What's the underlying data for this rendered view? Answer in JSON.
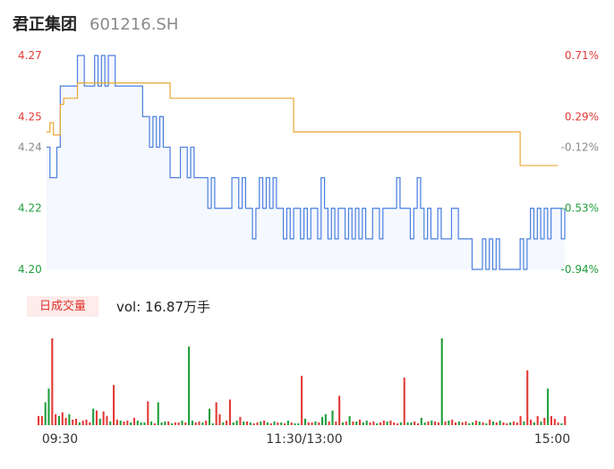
{
  "header": {
    "name": "君正集团",
    "code": "601216.SH"
  },
  "colors": {
    "price": "#4a7fe0",
    "avg": "#e8a735",
    "up": "#e23a36",
    "down": "#1f9e3c",
    "flat": "#8a8a8a",
    "fill": "#f5f8fe"
  },
  "chart_data": [
    {
      "type": "line",
      "series": [
        {
          "values": [
            4.24,
            4.23,
            4.23,
            4.24,
            4.26,
            4.26,
            4.26,
            4.26,
            4.26,
            4.27,
            4.27,
            4.26,
            4.26,
            4.26,
            4.27,
            4.26,
            4.27,
            4.26,
            4.27,
            4.27,
            4.26,
            4.26,
            4.26,
            4.26,
            4.26,
            4.26,
            4.26,
            4.26,
            4.25,
            4.25,
            4.24,
            4.25,
            4.24,
            4.25,
            4.24,
            4.24,
            4.23,
            4.23,
            4.23,
            4.24,
            4.24,
            4.23,
            4.24,
            4.23,
            4.23,
            4.23,
            4.23,
            4.22,
            4.23,
            4.22,
            4.22,
            4.22,
            4.22,
            4.22,
            4.23,
            4.23,
            4.22,
            4.23,
            4.22,
            4.22,
            4.21,
            4.22,
            4.23,
            4.22,
            4.23,
            4.22,
            4.23,
            4.22,
            4.22,
            4.21,
            4.22,
            4.21,
            4.22,
            4.22,
            4.21,
            4.22,
            4.21,
            4.22,
            4.22,
            4.21,
            4.23,
            4.22,
            4.21,
            4.22,
            4.21,
            4.22,
            4.22,
            4.21,
            4.22,
            4.21,
            4.22,
            4.21,
            4.22,
            4.21,
            4.21,
            4.22,
            4.22,
            4.21,
            4.22,
            4.22,
            4.22,
            4.22,
            4.23,
            4.22,
            4.22,
            4.22,
            4.21,
            4.22,
            4.23,
            4.22,
            4.21,
            4.22,
            4.21,
            4.21,
            4.22,
            4.21,
            4.21,
            4.21,
            4.22,
            4.22,
            4.21,
            4.21,
            4.21,
            4.21,
            4.2,
            4.2,
            4.2,
            4.21,
            4.2,
            4.21,
            4.2,
            4.21,
            4.2,
            4.2,
            4.2,
            4.2,
            4.2,
            4.2,
            4.21,
            4.2,
            4.21,
            4.22,
            4.21,
            4.22,
            4.21,
            4.22,
            4.21,
            4.22,
            4.22,
            4.22,
            4.21,
            4.22
          ]
        },
        {
          "values": [
            4.245,
            4.248,
            4.244,
            4.244,
            4.254,
            4.256,
            4.256,
            4.256,
            4.256,
            4.261,
            4.261,
            4.261,
            4.261,
            4.261,
            4.261,
            4.261,
            4.261,
            4.261,
            4.261,
            4.261,
            4.261,
            4.261,
            4.261,
            4.261,
            4.261,
            4.261,
            4.261,
            4.261,
            4.261,
            4.261,
            4.261,
            4.261,
            4.261,
            4.261,
            4.261,
            4.261,
            4.256,
            4.256,
            4.256,
            4.256,
            4.256,
            4.256,
            4.256,
            4.256,
            4.256,
            4.256,
            4.256,
            4.256,
            4.256,
            4.256,
            4.256,
            4.256,
            4.256,
            4.256,
            4.256,
            4.256,
            4.256,
            4.256,
            4.256,
            4.256,
            4.256,
            4.256,
            4.256,
            4.256,
            4.256,
            4.256,
            4.256,
            4.256,
            4.256,
            4.256,
            4.256,
            4.256,
            4.245,
            4.245,
            4.245,
            4.245,
            4.245,
            4.245,
            4.245,
            4.245,
            4.245,
            4.245,
            4.245,
            4.245,
            4.245,
            4.245,
            4.245,
            4.245,
            4.245,
            4.245,
            4.245,
            4.245,
            4.245,
            4.245,
            4.245,
            4.245,
            4.245,
            4.245,
            4.245,
            4.245,
            4.245,
            4.245,
            4.245,
            4.245,
            4.245,
            4.245,
            4.245,
            4.245,
            4.245,
            4.245,
            4.245,
            4.245,
            4.245,
            4.245,
            4.245,
            4.245,
            4.245,
            4.245,
            4.245,
            4.245,
            4.245,
            4.245,
            4.245,
            4.245,
            4.245,
            4.245,
            4.245,
            4.245,
            4.245,
            4.245,
            4.245,
            4.245,
            4.245,
            4.245,
            4.245,
            4.245,
            4.245,
            4.245,
            4.234,
            4.234,
            4.234,
            4.234,
            4.234,
            4.234,
            4.234,
            4.234,
            4.234,
            4.234,
            4.234,
            4.234
          ]
        }
      ],
      "ylim": [
        4.2,
        4.27
      ],
      "y_ticks_left": [
        "4.27",
        "4.25",
        "4.24",
        "4.22",
        "4.20"
      ],
      "y_ticks_right": [
        "0.71%",
        "0.29%",
        "-0.12%",
        "-0.53%",
        "-0.94%"
      ],
      "x_ticks": [
        "09:30",
        "11:30/13:00",
        "15:00"
      ],
      "grid": false
    },
    {
      "type": "bar",
      "volume_label": "日成交量",
      "vol_text": "vol: 16.87万手",
      "values": [
        10,
        10,
        25,
        40,
        95,
        12,
        10,
        14,
        8,
        12,
        6,
        7,
        3,
        5,
        6,
        3,
        18,
        16,
        7,
        15,
        10,
        4,
        44,
        6,
        5,
        4,
        5,
        3,
        8,
        5,
        3,
        3,
        26,
        4,
        2,
        25,
        3,
        4,
        4,
        2,
        3,
        3,
        5,
        3,
        86,
        5,
        3,
        4,
        3,
        5,
        18,
        2,
        25,
        12,
        3,
        5,
        28,
        3,
        5,
        9,
        4,
        4,
        3,
        2,
        3,
        4,
        5,
        3,
        2,
        4,
        3,
        3,
        2,
        5,
        3,
        2,
        2,
        54,
        7,
        3,
        3,
        4,
        3,
        9,
        12,
        4,
        16,
        4,
        32,
        3,
        4,
        10,
        4,
        4,
        6,
        3,
        5,
        3,
        4,
        2,
        3,
        5,
        4,
        5,
        3,
        2,
        3,
        52,
        3,
        3,
        4,
        2,
        8,
        3,
        4,
        5,
        4,
        3,
        95,
        4,
        5,
        6,
        3,
        4,
        3,
        4,
        2,
        3,
        5,
        4,
        3,
        2,
        6,
        4,
        3,
        5,
        3,
        2,
        3,
        4,
        3,
        10,
        4,
        60,
        6,
        3,
        10,
        4,
        8,
        40,
        10,
        7,
        3,
        2,
        10
      ]
    }
  ]
}
